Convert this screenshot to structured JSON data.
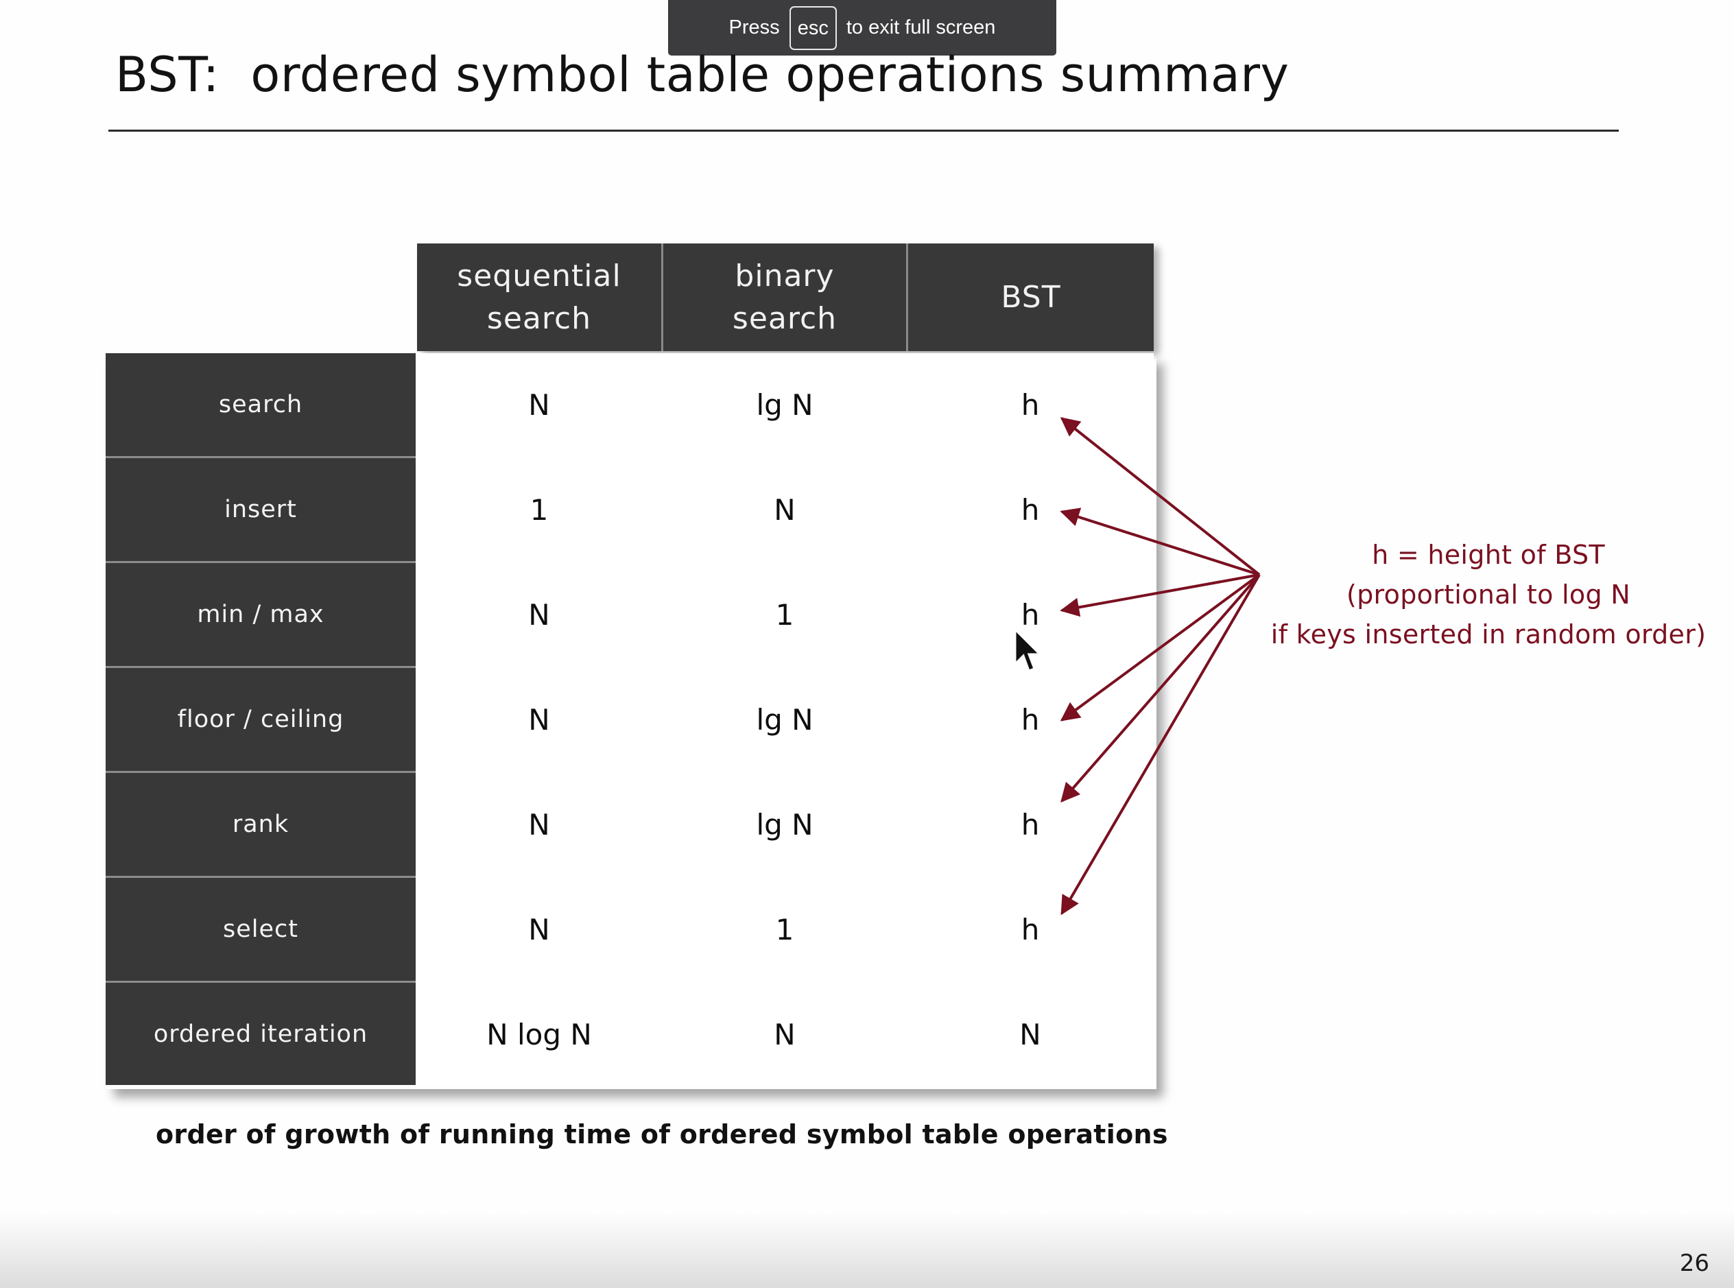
{
  "fullscreen_banner": {
    "press": "Press",
    "key": "esc",
    "message": "to exit full screen"
  },
  "slide": {
    "title": "BST:  ordered symbol table operations summary",
    "page_number": "26",
    "caption": "order of growth of running time of ordered symbol table operations",
    "annotation": {
      "line1": "h = height of BST",
      "line2": "(proportional to log N",
      "line3": "if keys inserted in random order)",
      "color": "#7a1020"
    }
  },
  "table": {
    "columns": [
      {
        "line1": "sequential",
        "line2": "search"
      },
      {
        "line1": "binary",
        "line2": "search"
      },
      {
        "line1": "BST",
        "line2": ""
      }
    ],
    "rows": [
      {
        "label": "search",
        "cells": [
          "N",
          "lg N",
          "h"
        ]
      },
      {
        "label": "insert",
        "cells": [
          "1",
          "N",
          "h"
        ]
      },
      {
        "label": "min / max",
        "cells": [
          "N",
          "1",
          "h"
        ]
      },
      {
        "label": "floor / ceiling",
        "cells": [
          "N",
          "lg N",
          "h"
        ]
      },
      {
        "label": "rank",
        "cells": [
          "N",
          "lg N",
          "h"
        ]
      },
      {
        "label": "select",
        "cells": [
          "N",
          "1",
          "h"
        ]
      },
      {
        "label": "ordered iteration",
        "cells": [
          "N log N",
          "N",
          "N"
        ]
      }
    ]
  }
}
